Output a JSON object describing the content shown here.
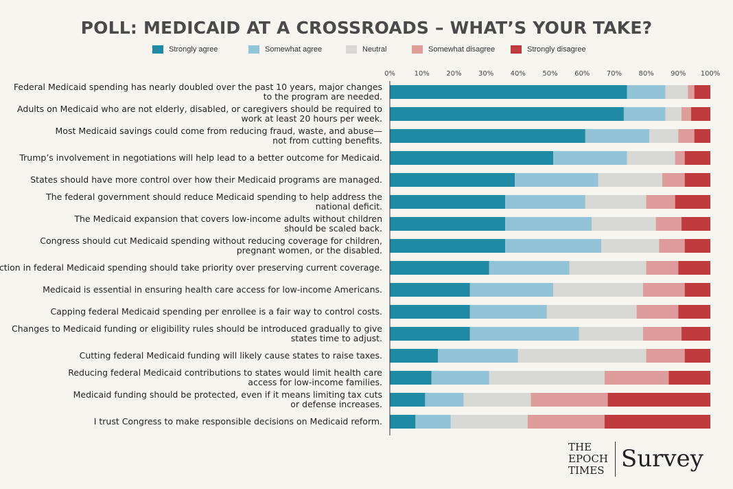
{
  "title": "POLL: MEDICAID AT A CROSSROADS – WHAT’S YOUR TAKE?",
  "brand": {
    "name": "THE\nEPOCH\nTIMES",
    "word": "Survey"
  },
  "chart_data": {
    "type": "bar",
    "orientation": "horizontal",
    "stacked": true,
    "xlim": [
      0,
      100
    ],
    "xticks": [
      "0%",
      "10%",
      "20%",
      "30%",
      "40%",
      "50%",
      "60%",
      "70%",
      "80%",
      "90%",
      "100%"
    ],
    "legend_position": "top",
    "series": [
      {
        "name": "Strongly agree",
        "color": "#1e8aa4"
      },
      {
        "name": "Somewhat agree",
        "color": "#92c3d6"
      },
      {
        "name": "Neutral",
        "color": "#d8d8d5"
      },
      {
        "name": "Somewhat disagree",
        "color": "#de9c9a"
      },
      {
        "name": "Strongly disagree",
        "color": "#bf3b3e"
      }
    ],
    "categories": [
      [
        "Federal Medicaid spending has nearly doubled over the past 10 years, major changes",
        "to the program are needed."
      ],
      [
        "Adults on Medicaid who are not elderly, disabled, or caregivers should be required to",
        "work at least 20 hours per week."
      ],
      [
        "Most Medicaid savings could come from reducing fraud, waste, and abuse—",
        "not from cutting benefits."
      ],
      [
        "Trump’s involvement in negotiations will help lead to a better outcome for Medicaid."
      ],
      [
        "States should have more control over how their Medicaid programs are managed."
      ],
      [
        "The federal government should reduce Medicaid spending to help address the",
        "national deficit."
      ],
      [
        "The Medicaid expansion that covers low-income adults without children",
        "should be scaled back."
      ],
      [
        "Congress should cut Medicaid spending without reducing coverage for children,",
        "pregnant women, or the disabled."
      ],
      [
        "A reduction in federal Medicaid spending should take priority over preserving current coverage."
      ],
      [
        "Medicaid is essential in ensuring health care access for low-income Americans."
      ],
      [
        "Capping federal Medicaid spending per enrollee is a fair way to control costs."
      ],
      [
        "Changes to Medicaid funding or eligibility rules should be introduced gradually to give",
        "states time to adjust."
      ],
      [
        "Cutting federal Medicaid funding will likely cause states to raise taxes."
      ],
      [
        "Reducing federal Medicaid contributions to states would limit health care",
        "access for low-income families."
      ],
      [
        "Medicaid funding should be protected, even if it means limiting tax cuts",
        "or defense increases."
      ],
      [
        "I trust Congress to make responsible decisions on Medicaid reform."
      ]
    ],
    "values": [
      [
        74,
        12,
        7,
        2,
        5
      ],
      [
        73,
        13,
        5,
        3,
        6
      ],
      [
        61,
        20,
        9,
        5,
        5
      ],
      [
        51,
        23,
        15,
        3,
        8
      ],
      [
        39,
        26,
        20,
        7,
        8
      ],
      [
        36,
        25,
        19,
        9,
        11
      ],
      [
        36,
        27,
        20,
        8,
        9
      ],
      [
        36,
        30,
        18,
        8,
        8
      ],
      [
        31,
        25,
        24,
        10,
        10
      ],
      [
        25,
        26,
        28,
        13,
        8
      ],
      [
        25,
        24,
        28,
        13,
        10
      ],
      [
        25,
        34,
        20,
        12,
        9
      ],
      [
        15,
        25,
        40,
        12,
        8
      ],
      [
        13,
        18,
        36,
        20,
        13
      ],
      [
        11,
        12,
        21,
        24,
        32
      ],
      [
        8,
        11,
        24,
        24,
        33
      ]
    ]
  }
}
